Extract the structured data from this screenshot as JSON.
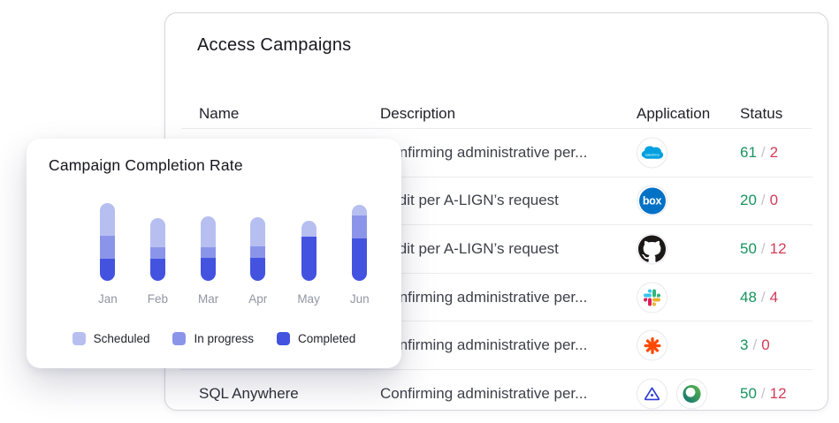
{
  "table_card": {
    "title": "Access Campaigns",
    "columns": [
      "Name",
      "Description",
      "Application",
      "Status"
    ],
    "rows": [
      {
        "name": "",
        "description": "Confirming administrative per...",
        "apps": [
          "salesforce"
        ],
        "status": {
          "green": "61",
          "red": "2"
        }
      },
      {
        "name": "",
        "description": "Audit per A-LIGN’s request",
        "apps": [
          "box"
        ],
        "status": {
          "green": "20",
          "red": "0"
        }
      },
      {
        "name": "",
        "description": "Audit per A-LIGN’s request",
        "apps": [
          "github"
        ],
        "status": {
          "green": "50",
          "red": "12"
        }
      },
      {
        "name": "",
        "description": "Confirming administrative per...",
        "apps": [
          "slack"
        ],
        "status": {
          "green": "48",
          "red": "4"
        }
      },
      {
        "name": "",
        "description": "Confirming administrative per...",
        "apps": [
          "zapier"
        ],
        "status": {
          "green": "3",
          "red": "0"
        }
      },
      {
        "name": "SQL Anywhere",
        "description": "Confirming administrative per...",
        "apps": [
          "triangle-eye",
          "teal-ring"
        ],
        "status": {
          "green": "50",
          "red": "12"
        }
      }
    ],
    "status_colors": {
      "green": "#18935f",
      "red": "#d23b56",
      "separator": "#c3c5cd"
    }
  },
  "chart_card": {
    "title": "Campaign Completion Rate",
    "legend": [
      {
        "label": "Scheduled",
        "color": "#b7bff1"
      },
      {
        "label": "In progress",
        "color": "#8a95ea"
      },
      {
        "label": "Completed",
        "color": "#4353e0"
      }
    ]
  },
  "chart_data": {
    "type": "bar",
    "stacked": true,
    "title": "Campaign Completion Rate",
    "categories": [
      "Jan",
      "Feb",
      "Mar",
      "Apr",
      "May",
      "Jun"
    ],
    "series": [
      {
        "name": "Scheduled",
        "color": "#b7bff1",
        "values": [
          37,
          33,
          35,
          33,
          18,
          12
        ]
      },
      {
        "name": "In progress",
        "color": "#8a95ea",
        "values": [
          26,
          13,
          12,
          13,
          0,
          26
        ]
      },
      {
        "name": "Completed",
        "color": "#4353e0",
        "values": [
          25,
          25,
          26,
          26,
          50,
          48
        ]
      }
    ],
    "value_note": "relative stacked bar heights; axis unlabeled in source",
    "xlabel": "",
    "ylabel": "",
    "legend_position": "bottom"
  }
}
